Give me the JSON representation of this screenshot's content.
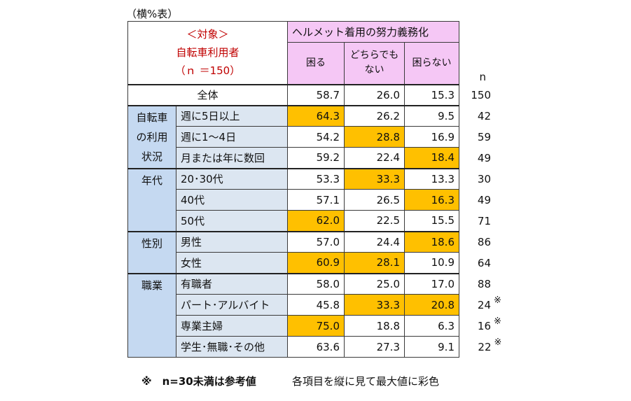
{
  "unit_label": "（横%表）",
  "header": {
    "target_line1": "＜対象＞",
    "target_line2": "自転車利用者",
    "target_line3": "（ｎ ＝150）",
    "group_label": "ヘルメット着用の努力義務化",
    "col1": "困る",
    "col2_line1": "どちらでも",
    "col2_line2": "ない",
    "col3": "困らない",
    "n_label": "n"
  },
  "footnote_left": "※　n=30未満は参考値",
  "footnote_right": "各項目を縦に見て最大値に彩色",
  "colors": {
    "highlight": "#ffc000",
    "header_bg": "#f5c7f5",
    "category_bg": "#c5d9f1",
    "subcategory_bg": "#dce6f1",
    "target_text": "#c00000"
  },
  "chart_data": {
    "type": "table",
    "columns": [
      "困る",
      "どちらでもない",
      "困らない",
      "n"
    ],
    "categories": [
      {
        "name": "",
        "rows": [
          {
            "label": "全体",
            "values": [
              "58.7",
              "26.0",
              "15.3"
            ],
            "highlight": [
              false,
              false,
              false
            ],
            "n": "150",
            "mark": ""
          }
        ]
      },
      {
        "name": "自転車の利用状況",
        "lines": [
          "自転車",
          "の利用",
          "状況"
        ],
        "rows": [
          {
            "label": "週に5日以上",
            "values": [
              "64.3",
              "26.2",
              "9.5"
            ],
            "highlight": [
              true,
              false,
              false
            ],
            "n": "42",
            "mark": ""
          },
          {
            "label": "週に1～4日",
            "values": [
              "54.2",
              "28.8",
              "16.9"
            ],
            "highlight": [
              false,
              true,
              false
            ],
            "n": "59",
            "mark": ""
          },
          {
            "label": "月または年に数回",
            "values": [
              "59.2",
              "22.4",
              "18.4"
            ],
            "highlight": [
              false,
              false,
              true
            ],
            "n": "49",
            "mark": ""
          }
        ]
      },
      {
        "name": "年代",
        "lines": [
          "年代"
        ],
        "rows": [
          {
            "label": "20･30代",
            "values": [
              "53.3",
              "33.3",
              "13.3"
            ],
            "highlight": [
              false,
              true,
              false
            ],
            "n": "30",
            "mark": ""
          },
          {
            "label": "40代",
            "values": [
              "57.1",
              "26.5",
              "16.3"
            ],
            "highlight": [
              false,
              false,
              true
            ],
            "n": "49",
            "mark": ""
          },
          {
            "label": "50代",
            "values": [
              "62.0",
              "22.5",
              "15.5"
            ],
            "highlight": [
              true,
              false,
              false
            ],
            "n": "71",
            "mark": ""
          }
        ]
      },
      {
        "name": "性別",
        "lines": [
          "性別"
        ],
        "rows": [
          {
            "label": "男性",
            "values": [
              "57.0",
              "24.4",
              "18.6"
            ],
            "highlight": [
              false,
              false,
              true
            ],
            "n": "86",
            "mark": ""
          },
          {
            "label": "女性",
            "values": [
              "60.9",
              "28.1",
              "10.9"
            ],
            "highlight": [
              true,
              true,
              false
            ],
            "n": "64",
            "mark": ""
          }
        ]
      },
      {
        "name": "職業",
        "lines": [
          "職業"
        ],
        "rows": [
          {
            "label": "有職者",
            "values": [
              "58.0",
              "25.0",
              "17.0"
            ],
            "highlight": [
              false,
              false,
              false
            ],
            "n": "88",
            "mark": ""
          },
          {
            "label": "パート･アルバイト",
            "values": [
              "45.8",
              "33.3",
              "20.8"
            ],
            "highlight": [
              false,
              true,
              true
            ],
            "n": "24",
            "mark": "※"
          },
          {
            "label": "専業主婦",
            "values": [
              "75.0",
              "18.8",
              "6.3"
            ],
            "highlight": [
              true,
              false,
              false
            ],
            "n": "16",
            "mark": "※"
          },
          {
            "label": "学生･無職･その他",
            "values": [
              "63.6",
              "27.3",
              "9.1"
            ],
            "highlight": [
              false,
              false,
              false
            ],
            "n": "22",
            "mark": "※"
          }
        ]
      }
    ]
  }
}
